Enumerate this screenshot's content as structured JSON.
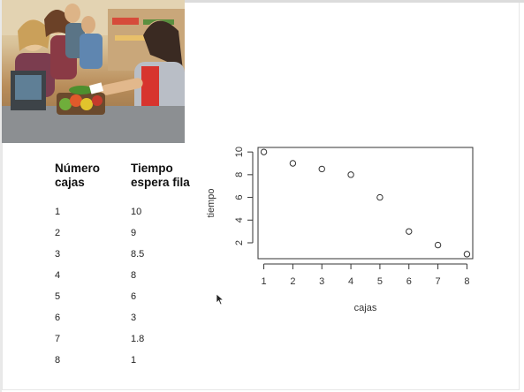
{
  "table": {
    "headers": [
      [
        "Número",
        "cajas"
      ],
      [
        "Tiempo",
        "espera fila"
      ]
    ],
    "rows": [
      [
        "1",
        "10"
      ],
      [
        "2",
        "9"
      ],
      [
        "3",
        "8.5"
      ],
      [
        "4",
        "8"
      ],
      [
        "5",
        "6"
      ],
      [
        "6",
        "3"
      ],
      [
        "7",
        "1.8"
      ],
      [
        "8",
        "1"
      ]
    ]
  },
  "chart_data": {
    "type": "scatter",
    "x": [
      1,
      2,
      3,
      4,
      5,
      6,
      7,
      8
    ],
    "y": [
      10,
      9,
      8.5,
      8,
      6,
      3,
      1.8,
      1
    ],
    "xlabel": "cajas",
    "ylabel": "tiempo",
    "xticks": [
      "1",
      "2",
      "3",
      "4",
      "5",
      "6",
      "7",
      "8"
    ],
    "yticks": [
      "2",
      "4",
      "6",
      "8",
      "10"
    ],
    "xlim": [
      0.8,
      8.2
    ],
    "ylim": [
      0.6,
      10.4
    ],
    "grid": false
  },
  "icons": {
    "photo": "supermarket-checkout-photo",
    "cursor": "mouse-pointer-icon"
  }
}
